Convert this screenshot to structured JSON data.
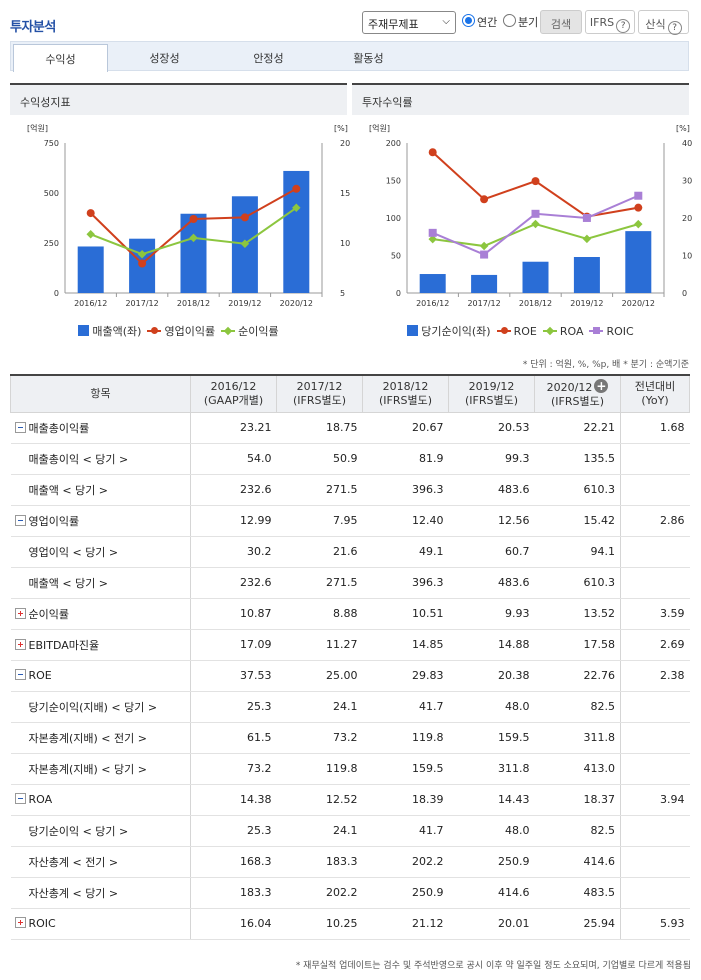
{
  "header": {
    "title": "투자분석",
    "select_value": "주재무제표",
    "radio_annual": "연간",
    "radio_quarter": "분기",
    "search_label": "검색",
    "ifrs_label": "IFRS",
    "formula_label": "산식"
  },
  "tabs": [
    {
      "label": "수익성"
    },
    {
      "label": "성장성"
    },
    {
      "label": "안정성"
    },
    {
      "label": "활동성"
    }
  ],
  "charts": {
    "left_title": "수익성지표",
    "right_title": "투자수익률"
  },
  "chart_data": [
    {
      "type": "bar+line",
      "title": "수익성지표",
      "categories": [
        "2016/12",
        "2017/12",
        "2018/12",
        "2019/12",
        "2020/12"
      ],
      "left_axis": {
        "unit": "[억원]",
        "ticks": [
          "750",
          "500",
          "250",
          "0"
        ],
        "range": [
          0,
          750
        ]
      },
      "right_axis": {
        "unit": "[%]",
        "ticks": [
          "20",
          "15",
          "10",
          "5"
        ],
        "range": [
          5,
          20
        ]
      },
      "series": [
        {
          "name": "매출액(좌)",
          "kind": "bar",
          "axis": "left",
          "color": "#2a6dd6",
          "values": [
            232.6,
            271.5,
            396.3,
            483.6,
            610.3
          ]
        },
        {
          "name": "영업이익률",
          "kind": "line",
          "axis": "right",
          "color": "#d0401d",
          "marker": "circle",
          "values": [
            12.99,
            7.95,
            12.4,
            12.56,
            15.42
          ]
        },
        {
          "name": "순이익률",
          "kind": "line",
          "axis": "right",
          "color": "#8cc63f",
          "marker": "diamond",
          "values": [
            10.87,
            8.88,
            10.51,
            9.93,
            13.52
          ]
        }
      ]
    },
    {
      "type": "bar+line",
      "title": "투자수익률",
      "categories": [
        "2016/12",
        "2017/12",
        "2018/12",
        "2019/12",
        "2020/12"
      ],
      "left_axis": {
        "unit": "[억원]",
        "ticks": [
          "200",
          "150",
          "100",
          "50",
          "0"
        ],
        "range": [
          0,
          200
        ]
      },
      "right_axis": {
        "unit": "[%]",
        "ticks": [
          "40",
          "30",
          "20",
          "10",
          "0"
        ],
        "range": [
          0,
          40
        ]
      },
      "series": [
        {
          "name": "당기순이익(좌)",
          "kind": "bar",
          "axis": "left",
          "color": "#2a6dd6",
          "values": [
            25.3,
            24.1,
            41.7,
            48.0,
            82.5
          ]
        },
        {
          "name": "ROE",
          "kind": "line",
          "axis": "right",
          "color": "#d0401d",
          "marker": "circle",
          "values": [
            37.53,
            25.0,
            29.83,
            20.38,
            22.76
          ]
        },
        {
          "name": "ROA",
          "kind": "line",
          "axis": "right",
          "color": "#8cc63f",
          "marker": "diamond",
          "values": [
            14.38,
            12.52,
            18.39,
            14.43,
            18.37
          ]
        },
        {
          "name": "ROIC",
          "kind": "line",
          "axis": "right",
          "color": "#a97fd6",
          "marker": "square",
          "values": [
            16.04,
            10.25,
            21.12,
            20.01,
            25.94
          ]
        }
      ]
    }
  ],
  "unit_note": "* 단위 : 억원, %, %p, 배   * 분기 : 순액기준",
  "table": {
    "head_item": "항목",
    "columns": [
      {
        "year": "2016/12",
        "basis": "(GAAP개별)"
      },
      {
        "year": "2017/12",
        "basis": "(IFRS별도)"
      },
      {
        "year": "2018/12",
        "basis": "(IFRS별도)"
      },
      {
        "year": "2019/12",
        "basis": "(IFRS별도)"
      },
      {
        "year": "2020/12",
        "basis": "(IFRS별도)"
      }
    ],
    "yoy_line1": "전년대비",
    "yoy_line2": "(YoY)",
    "rows": [
      {
        "label": "매출총이익률",
        "toggle": "minus",
        "values": [
          "23.21",
          "18.75",
          "20.67",
          "20.53",
          "22.21"
        ],
        "yoy": "1.68"
      },
      {
        "label": "매출총이익 < 당기 >",
        "values": [
          "54.0",
          "50.9",
          "81.9",
          "99.3",
          "135.5"
        ],
        "yoy": ""
      },
      {
        "label": "매출액 < 당기 >",
        "values": [
          "232.6",
          "271.5",
          "396.3",
          "483.6",
          "610.3"
        ],
        "yoy": ""
      },
      {
        "label": "영업이익률",
        "toggle": "minus",
        "values": [
          "12.99",
          "7.95",
          "12.40",
          "12.56",
          "15.42"
        ],
        "yoy": "2.86"
      },
      {
        "label": "영업이익 < 당기 >",
        "values": [
          "30.2",
          "21.6",
          "49.1",
          "60.7",
          "94.1"
        ],
        "yoy": ""
      },
      {
        "label": "매출액 < 당기 >",
        "values": [
          "232.6",
          "271.5",
          "396.3",
          "483.6",
          "610.3"
        ],
        "yoy": ""
      },
      {
        "label": "순이익률",
        "toggle": "plus",
        "values": [
          "10.87",
          "8.88",
          "10.51",
          "9.93",
          "13.52"
        ],
        "yoy": "3.59"
      },
      {
        "label": "EBITDA마진율",
        "toggle": "plus",
        "values": [
          "17.09",
          "11.27",
          "14.85",
          "14.88",
          "17.58"
        ],
        "yoy": "2.69"
      },
      {
        "label": "ROE",
        "toggle": "minus",
        "values": [
          "37.53",
          "25.00",
          "29.83",
          "20.38",
          "22.76"
        ],
        "yoy": "2.38"
      },
      {
        "label": "당기순이익(지배) < 당기 >",
        "values": [
          "25.3",
          "24.1",
          "41.7",
          "48.0",
          "82.5"
        ],
        "yoy": ""
      },
      {
        "label": "자본총계(지배) < 전기 >",
        "values": [
          "61.5",
          "73.2",
          "119.8",
          "159.5",
          "311.8"
        ],
        "yoy": ""
      },
      {
        "label": "자본총계(지배) < 당기 >",
        "values": [
          "73.2",
          "119.8",
          "159.5",
          "311.8",
          "413.0"
        ],
        "yoy": ""
      },
      {
        "label": "ROA",
        "toggle": "minus",
        "values": [
          "14.38",
          "12.52",
          "18.39",
          "14.43",
          "18.37"
        ],
        "yoy": "3.94"
      },
      {
        "label": "당기순이익 < 당기 >",
        "values": [
          "25.3",
          "24.1",
          "41.7",
          "48.0",
          "82.5"
        ],
        "yoy": ""
      },
      {
        "label": "자산총계 < 전기 >",
        "values": [
          "168.3",
          "183.3",
          "202.2",
          "250.9",
          "414.6"
        ],
        "yoy": ""
      },
      {
        "label": "자산총계 < 당기 >",
        "values": [
          "183.3",
          "202.2",
          "250.9",
          "414.6",
          "483.5"
        ],
        "yoy": ""
      },
      {
        "label": "ROIC",
        "toggle": "plus",
        "values": [
          "16.04",
          "10.25",
          "21.12",
          "20.01",
          "25.94"
        ],
        "yoy": "5.93"
      }
    ]
  },
  "footnote": "* 재무실적 업데이트는 검수 및 주석반영으로 공시 이후 약 일주일 정도 소요되며, 기업별로 다르게 적용됨"
}
